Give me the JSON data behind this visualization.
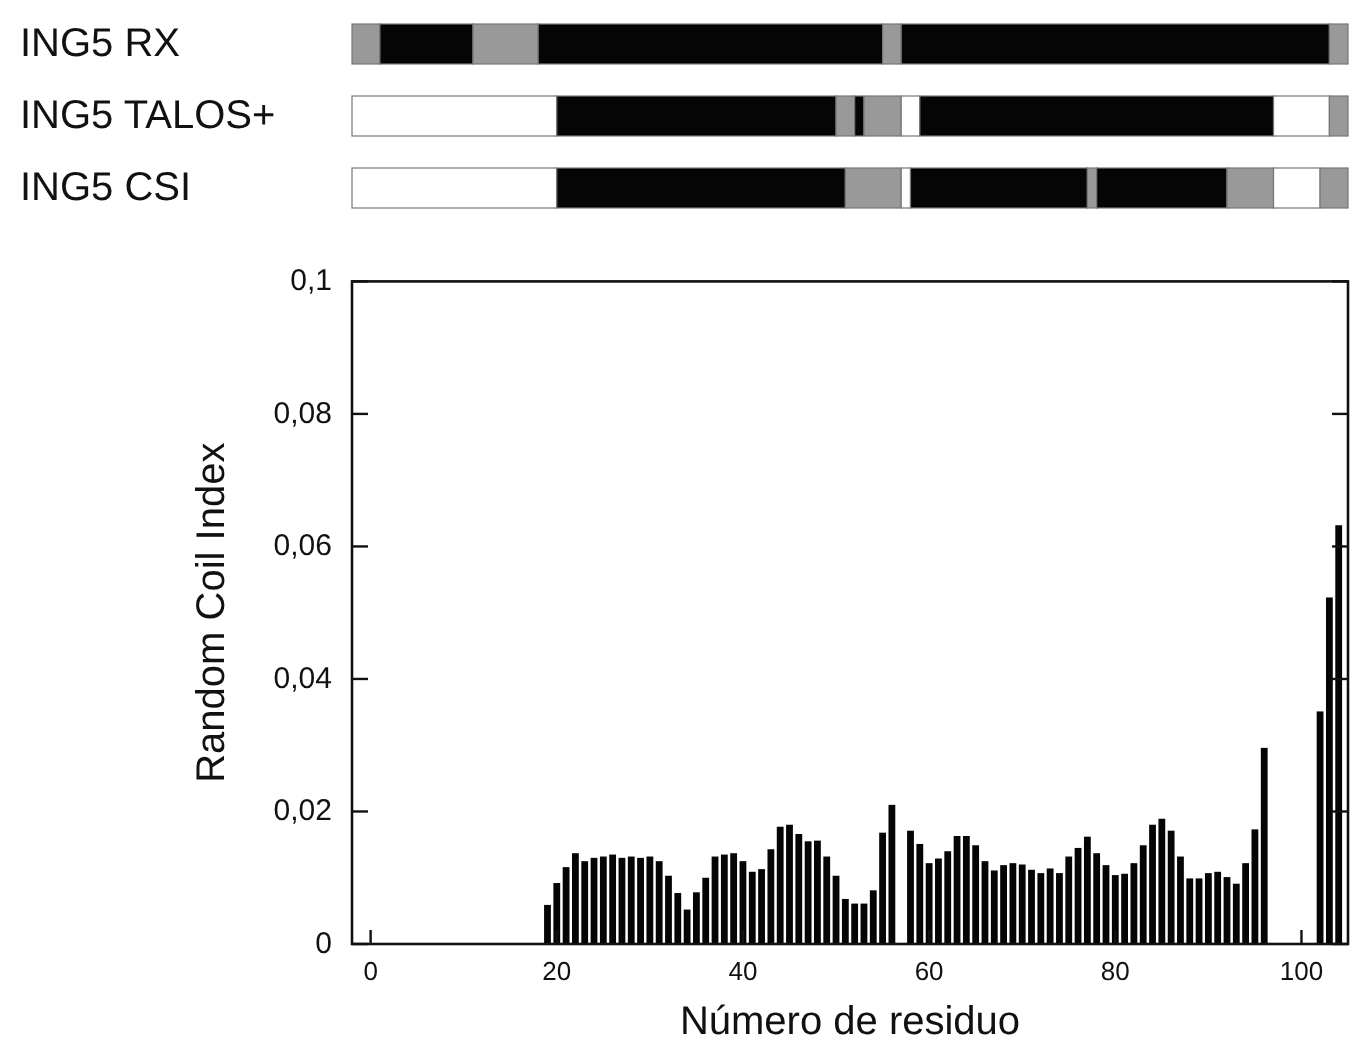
{
  "chart_data": [
    {
      "type": "bar",
      "orientation": "horizontal",
      "categories": [
        "ING5 RX",
        "ING5 TALOS+",
        "ING5 CSI"
      ],
      "xlim": [
        -2,
        105
      ],
      "series": [
        {
          "values": [
            3,
            22,
            22
          ],
          "base": [
            -2,
            -2,
            -2
          ],
          "colors": [
            "#999999",
            "#ffffff",
            "#ffffff"
          ]
        },
        {
          "values": [
            10,
            30,
            31
          ],
          "base": [
            1,
            20,
            20
          ],
          "colors": [
            "#050505",
            "#050505",
            "#050505"
          ]
        },
        {
          "values": [
            7,
            2,
            6
          ],
          "base": [
            11,
            50,
            51
          ],
          "colors": [
            "#999999",
            "#999999",
            "#999999"
          ]
        },
        {
          "values": [
            37,
            1,
            1
          ],
          "base": [
            18,
            52,
            57
          ],
          "colors": [
            "#050505",
            "#050505",
            "#ffffff"
          ]
        },
        {
          "values": [
            2,
            4,
            19
          ],
          "base": [
            55,
            53,
            58
          ],
          "colors": [
            "#999999",
            "#999999",
            "#050505"
          ]
        },
        {
          "values": [
            46,
            2,
            1
          ],
          "base": [
            57,
            57,
            77
          ],
          "colors": [
            "#050505",
            "#ffffff",
            "#999999"
          ]
        },
        {
          "values": [
            2,
            38,
            14
          ],
          "base": [
            103,
            59,
            78
          ],
          "colors": [
            "#999999",
            "#050505",
            "#050505"
          ]
        },
        {
          "values": [
            null,
            6,
            5
          ],
          "base": [
            null,
            97,
            92
          ],
          "colors": [
            null,
            "#ffffff",
            "#999999"
          ]
        },
        {
          "values": [
            null,
            2,
            5
          ],
          "base": [
            null,
            103,
            97
          ],
          "colors": [
            null,
            "#999999",
            "#ffffff"
          ]
        },
        {
          "values": [
            null,
            null,
            3
          ],
          "base": [
            null,
            null,
            102
          ],
          "colors": [
            null,
            null,
            "#999999"
          ]
        }
      ]
    },
    {
      "type": "bar",
      "xlabel": "Número de residuo",
      "ylabel": "Random Coil Index",
      "xlim": [
        -2,
        105
      ],
      "xticks": [
        0,
        20,
        40,
        60,
        80,
        100
      ],
      "ylim": [
        0,
        0.1
      ],
      "yticks": [
        0,
        {
          "value": 0.02,
          "label": "0,02"
        },
        {
          "value": 0.04,
          "label": "0,04"
        },
        {
          "value": 0.06,
          "label": "0,06"
        },
        {
          "value": 0.08,
          "label": "0,08"
        },
        {
          "value": 0.1,
          "label": "0,1"
        }
      ],
      "grid": false,
      "color": "#050505",
      "x": [
        19,
        20,
        21,
        22,
        23,
        24,
        25,
        26,
        27,
        28,
        29,
        30,
        31,
        32,
        33,
        34,
        35,
        36,
        37,
        38,
        39,
        40,
        41,
        42,
        43,
        44,
        45,
        46,
        47,
        48,
        49,
        50,
        51,
        52,
        53,
        54,
        55,
        56,
        58,
        59,
        60,
        61,
        62,
        63,
        64,
        65,
        66,
        67,
        68,
        69,
        70,
        71,
        72,
        73,
        74,
        75,
        76,
        77,
        78,
        79,
        80,
        81,
        82,
        83,
        84,
        85,
        86,
        87,
        88,
        89,
        90,
        91,
        92,
        93,
        94,
        95,
        96,
        102,
        103,
        104
      ],
      "values": [
        0.0059,
        0.0092,
        0.0116,
        0.0137,
        0.0125,
        0.013,
        0.0132,
        0.0135,
        0.013,
        0.0132,
        0.013,
        0.0132,
        0.0125,
        0.0103,
        0.0077,
        0.0052,
        0.0078,
        0.01,
        0.0132,
        0.0135,
        0.0137,
        0.0125,
        0.0109,
        0.0113,
        0.0143,
        0.0177,
        0.018,
        0.0166,
        0.0155,
        0.0156,
        0.0132,
        0.0103,
        0.0068,
        0.0061,
        0.0061,
        0.0081,
        0.0168,
        0.021,
        0.0171,
        0.0151,
        0.0122,
        0.0129,
        0.014,
        0.0163,
        0.0163,
        0.0149,
        0.0125,
        0.0111,
        0.0119,
        0.0122,
        0.012,
        0.0112,
        0.0107,
        0.0114,
        0.0107,
        0.0132,
        0.0145,
        0.0162,
        0.0137,
        0.0119,
        0.0104,
        0.0106,
        0.0122,
        0.0149,
        0.018,
        0.0189,
        0.0171,
        0.0132,
        0.0099,
        0.0099,
        0.0107,
        0.0109,
        0.0101,
        0.0091,
        0.0122,
        0.0173,
        0.0296,
        0.0351,
        0.0523,
        0.0632
      ]
    }
  ]
}
